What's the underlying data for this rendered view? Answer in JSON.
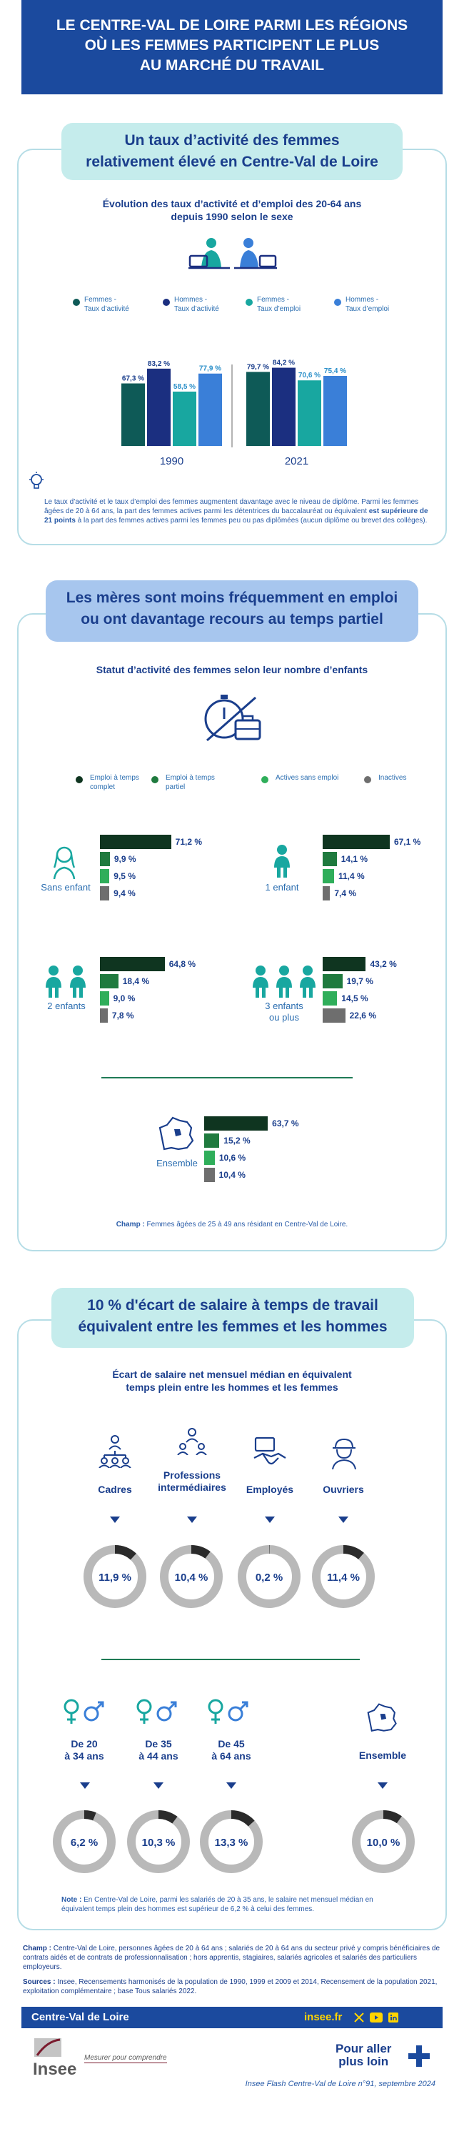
{
  "header": {
    "line1": "LE CENTRE-VAL DE LOIRE PARMI LES RÉGIONS",
    "line2": "OÙ LES FEMMES PARTICIPENT LE PLUS",
    "line3": "AU MARCHÉ DU TRAVAIL"
  },
  "section1": {
    "title1": "Un taux d’activité des femmes",
    "title2": "relativement élevé en Centre-Val de Loire",
    "subtitle1": "Évolution des taux d’activité et d’emploi des 20-64 ans",
    "subtitle2": "depuis 1990 selon le sexe",
    "note_part1": "Le taux d’activité et le taux d’emploi des femmes augmentent davantage avec le niveau de diplôme. Parmi les femmes âgées de 20 à 64 ans, la part des femmes actives parmi les détentrices du baccalauréat ou équivalent ",
    "note_bold": "est supérieure de 21 points",
    "note_part2": " à la part des femmes actives parmi les femmes peu ou pas diplômées (aucun diplôme ou brevet des collèges)."
  },
  "chart_data": [
    {
      "type": "bar",
      "categories": [
        "1990",
        "2021"
      ],
      "series": [
        {
          "name": "Femmes - Taux d’activité",
          "values": [
            67.3,
            79.7
          ]
        },
        {
          "name": "Hommes - Taux d’activité",
          "values": [
            83.2,
            84.2
          ]
        },
        {
          "name": "Femmes - Taux d’emploi",
          "values": [
            58.5,
            70.6
          ]
        },
        {
          "name": "Hommes - Taux d’emploi",
          "values": [
            77.9,
            75.4
          ]
        }
      ],
      "labels": {
        "1990": [
          "67,3 %",
          "83,2 %",
          "58,5 %",
          "77,9 %"
        ],
        "2021": [
          "79,7 %",
          "84,2 %",
          "70,6 %",
          "75,4 %"
        ]
      },
      "colors": [
        "#0e5a57",
        "#1b2f80",
        "#18a7a0",
        "#3a7fd8"
      ],
      "legend": [
        "Femmes -",
        "Taux d’activité",
        "Hommes -",
        "Taux d’activité",
        "Femmes -",
        "Taux d’emploi",
        "Hommes -",
        "Taux d’emploi"
      ]
    },
    {
      "type": "bar",
      "title": "Statut d’activité des femmes selon leur nombre d’enfants",
      "series_names": [
        "Emploi à temps complet",
        "Emploi à temps partiel",
        "Actives sans emploi",
        "Inactives"
      ],
      "colors": [
        "#0f3520",
        "#1f7a3e",
        "#2fae5a",
        "#6e6e6e"
      ],
      "groups": [
        {
          "name": "Sans enfant",
          "values": [
            71.2,
            9.9,
            9.5,
            9.4
          ],
          "labels": [
            "71,2 %",
            "9,9 %",
            "9,5 %",
            "9,4 %"
          ]
        },
        {
          "name": "1 enfant",
          "values": [
            67.1,
            14.1,
            11.4,
            7.4
          ],
          "labels": [
            "67,1 %",
            "14,1 %",
            "11,4 %",
            "7,4 %"
          ]
        },
        {
          "name": "2 enfants",
          "values": [
            64.8,
            18.4,
            9.0,
            7.8
          ],
          "labels": [
            "64,8 %",
            "18,4 %",
            "9,0 %",
            "7,8 %"
          ]
        },
        {
          "name": "3 enfants ou plus",
          "values": [
            43.2,
            19.7,
            14.5,
            22.6
          ],
          "labels": [
            "43,2 %",
            "19,7 %",
            "14,5 %",
            "22,6 %"
          ]
        },
        {
          "name": "Ensemble",
          "values": [
            63.7,
            15.2,
            10.6,
            10.4
          ],
          "labels": [
            "63,7 %",
            "15,2 %",
            "10,6 %",
            "10,4 %"
          ]
        }
      ]
    },
    {
      "type": "pie",
      "title": "Écart de salaire net mensuel médian en équivalent temps plein entre les hommes et les femmes",
      "categories": [
        "Cadres",
        "Professions intermédiaires",
        "Employés",
        "Ouvriers",
        "De 20 à 34 ans",
        "De 35 à 44 ans",
        "De 45 à 64 ans",
        "Ensemble"
      ],
      "values": [
        11.9,
        10.4,
        0.2,
        11.4,
        6.2,
        10.3,
        13.3,
        10.0
      ],
      "labels": [
        "11,9 %",
        "10,4 %",
        "0,2 %",
        "11,4 %",
        "6,2 %",
        "10,3 %",
        "13,3 %",
        "10,0 %"
      ],
      "colors": {
        "gap": "#2b2b2b",
        "rest": "#b9b9b9"
      }
    }
  ],
  "section2": {
    "title1": "Les mères sont moins fréquemment en emploi",
    "title2": "ou ont davantage recours au temps partiel",
    "subtitle": "Statut d’activité des femmes selon leur nombre d’enfants",
    "legend": [
      "Emploi à temps",
      "complet",
      "Emploi à temps",
      "partiel",
      "Actives sans emploi",
      "Inactives"
    ],
    "cat_no_child": "Sans enfant",
    "cat_one": "1 enfant",
    "cat_two": "2 enfants",
    "cat_three1": "3 enfants",
    "cat_three2": "ou plus",
    "cat_all": "Ensemble",
    "champ_label": "Champ :",
    "champ_text": " Femmes âgées de 25 à 49 ans résidant en Centre-Val de Loire."
  },
  "section3": {
    "title1": "10 % d'écart de salaire à temps de travail",
    "title2": "équivalent entre les femmes et les hommes",
    "subtitle1": "Écart de salaire net mensuel médian en équivalent",
    "subtitle2": "temps plein entre les hommes et les femmes",
    "cat_cadres": "Cadres",
    "cat_prof1": "Professions",
    "cat_prof2": "intermédiaires",
    "cat_employes": "Employés",
    "cat_ouvriers": "Ouvriers",
    "age1a": "De 20",
    "age1b": "à 34 ans",
    "age2a": "De 35",
    "age2b": "à 44 ans",
    "age3a": "De 45",
    "age3b": "à 64 ans",
    "ensemble": "Ensemble",
    "note_label": "Note :",
    "note_text": " En Centre-Val de Loire, parmi les salariés de 20 à 35 ans, le salaire net mensuel médian en équivalent temps plein des hommes est supérieur de 6,2 % à celui des femmes."
  },
  "sources": {
    "champ_label": "Champ :",
    "champ_text": " Centre-Val de Loire, personnes âgées de 20 à 64 ans ; salariés de 20 à 64 ans du secteur privé y compris bénéficiaires de contrats aidés et de contrats de professionnalisation ; hors apprentis, stagiaires, salariés agricoles et salariés des particuliers employeurs.",
    "sources_label": "Sources :",
    "sources_text": " Insee, Recensements harmonisés de la population de 1990, 1999 et 2009 et 2014, Recensement de la population 2021, exploitation complémentaire ; base Tous salariés 2022."
  },
  "footer": {
    "region": "Centre-Val de Loire",
    "site": "insee.fr",
    "logo_text": "Insee",
    "tagline": "Mesurer pour comprendre",
    "pour_aller1": "Pour aller",
    "pour_aller2": "plus loin",
    "publication": "Insee Flash Centre-Val de Loire n°91, septembre 2024"
  }
}
